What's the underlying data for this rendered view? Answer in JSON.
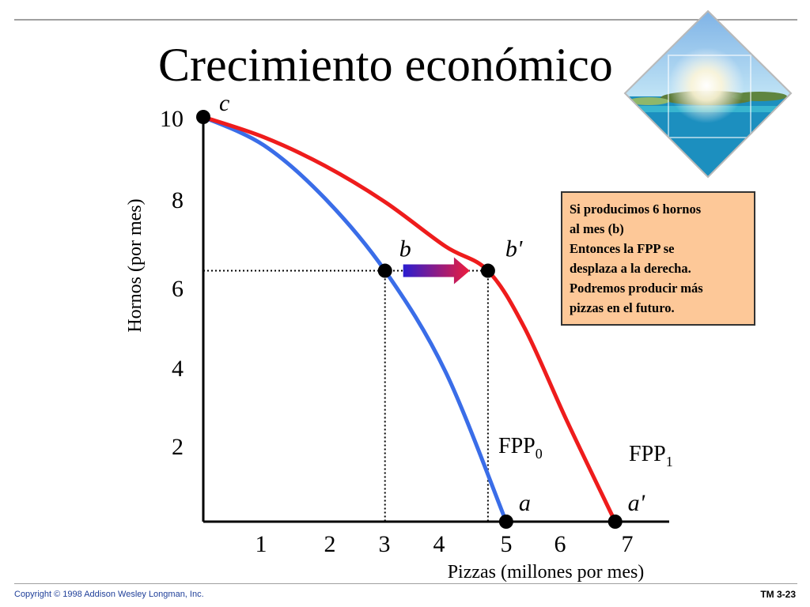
{
  "slide": {
    "title": "Crecimiento económico",
    "copyright": "Copyright © 1998 Addison Wesley Longman, Inc.",
    "slide_number": "TM 3-23",
    "decorative_image": "tropical-island-diamond-image"
  },
  "note": {
    "lines": [
      "Si producimos 6 hornos",
      "al mes (b)",
      "Entonces la FPP se",
      "desplaza a la derecha.",
      "Podremos producir más",
      "pizzas en el futuro."
    ]
  },
  "chart_data": {
    "type": "line",
    "xlabel": "Pizzas (millones por mes)",
    "ylabel": "Hornos (por mes)",
    "xlim": [
      0,
      7
    ],
    "ylim": [
      0,
      10
    ],
    "x_ticks": [
      1,
      2,
      3,
      4,
      5,
      6,
      7
    ],
    "y_ticks": [
      2,
      4,
      6,
      8,
      10
    ],
    "grid": false,
    "series": [
      {
        "name": "FPP",
        "subscript": "0",
        "color": "#3a6de8",
        "points": [
          [
            0,
            10
          ],
          [
            1,
            9.3
          ],
          [
            2,
            8.0
          ],
          [
            3,
            6.2
          ],
          [
            4,
            3.7
          ],
          [
            5,
            0
          ]
        ]
      },
      {
        "name": "FPP",
        "subscript": "1",
        "color": "#ee1c1c",
        "points": [
          [
            0,
            10
          ],
          [
            1,
            9.5
          ],
          [
            2,
            8.8
          ],
          [
            3,
            7.9
          ],
          [
            4,
            6.8
          ],
          [
            4.7,
            6.2
          ],
          [
            5.3,
            4.8
          ],
          [
            6,
            2.5
          ],
          [
            6.8,
            0
          ]
        ]
      }
    ],
    "points": [
      {
        "label": "c",
        "x": 0,
        "y": 10
      },
      {
        "label": "b",
        "x": 3,
        "y": 6.2
      },
      {
        "label": "b'",
        "x": 4.7,
        "y": 6.2
      },
      {
        "label": "a",
        "x": 5,
        "y": 0
      },
      {
        "label": "a'",
        "x": 6.8,
        "y": 0
      }
    ],
    "guides": [
      {
        "from": [
          0,
          6.2
        ],
        "to": [
          4.7,
          6.2
        ]
      },
      {
        "from": [
          3,
          6.2
        ],
        "to": [
          3,
          0
        ]
      },
      {
        "from": [
          4.7,
          6.2
        ],
        "to": [
          4.7,
          0
        ]
      }
    ],
    "shift_arrow": {
      "from": [
        3.3,
        6.2
      ],
      "to": [
        4.4,
        6.2
      ],
      "colors": [
        "#2a1dd0",
        "#ee1c3c"
      ]
    }
  }
}
